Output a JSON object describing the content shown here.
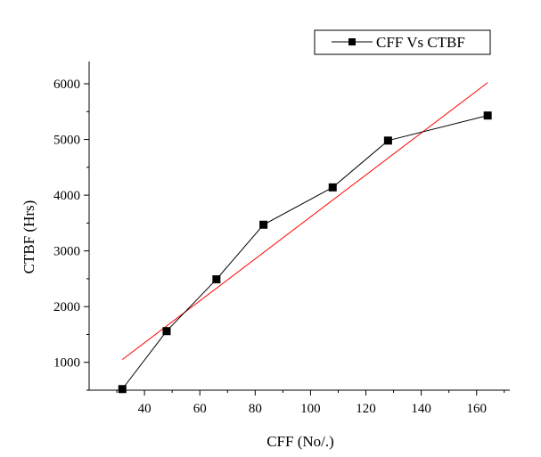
{
  "chart_data": {
    "type": "line",
    "title": "",
    "xlabel": "CFF (No/.)",
    "ylabel": "CTBF (Hrs)",
    "xlim": [
      20,
      172
    ],
    "ylim": [
      500,
      6400
    ],
    "x_ticks": [
      40,
      60,
      80,
      100,
      120,
      140,
      160
    ],
    "y_ticks": [
      1000,
      2000,
      3000,
      4000,
      5000,
      6000
    ],
    "grid": false,
    "legend_position": "top-right",
    "series": [
      {
        "name": "CFF Vs CTBF",
        "color": "#000000",
        "marker": "square",
        "x": [
          32,
          48,
          66,
          83,
          108,
          128,
          164
        ],
        "y": [
          520,
          1560,
          2490,
          3470,
          4140,
          4980,
          5430
        ]
      }
    ],
    "fit_line": {
      "color": "#ff0000",
      "x": [
        32,
        164
      ],
      "y": [
        1050,
        6020
      ]
    }
  }
}
